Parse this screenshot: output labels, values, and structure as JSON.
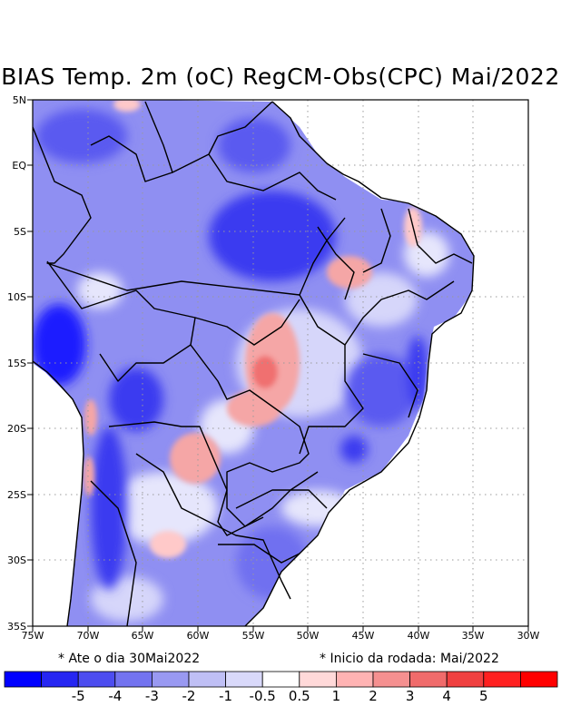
{
  "title": "BIAS Temp. 2m (oC) RegCM-Obs(CPC) Mai/2022",
  "notes": {
    "left": "* Ate o dia 30Mai2022",
    "right": "* Inicio da rodada: Mai/2022"
  },
  "lon_labels": [
    "75W",
    "70W",
    "65W",
    "60W",
    "55W",
    "50W",
    "45W",
    "40W",
    "35W",
    "30W"
  ],
  "lat_labels": [
    "5N",
    "EQ",
    "5S",
    "10S",
    "15S",
    "20S",
    "25S",
    "30S",
    "35S"
  ],
  "map": {
    "lon_range": [
      -75,
      -30
    ],
    "lat_range": [
      -35,
      5
    ],
    "ocean_color": "#ffffff",
    "grid": "dotted"
  },
  "colorbar": {
    "colors": [
      "#0000ff",
      "#2626f2",
      "#4d4df0",
      "#7373f0",
      "#9999f2",
      "#bfbff5",
      "#d9d9fa",
      "#ffffff",
      "#ffd9d9",
      "#ffb3b3",
      "#f59090",
      "#f06b6b",
      "#f04040",
      "#ff2020",
      "#ff0000"
    ],
    "labels": [
      "-5",
      "-4",
      "-3",
      "-2",
      "-1",
      "-0.5",
      "0.5",
      "1",
      "2",
      "3",
      "4",
      "5"
    ]
  },
  "colors": {
    "blue_strong": "#1a1aff",
    "blue_mid": "#5a5af0",
    "blue_light": "#8c8cf2",
    "blue_pale": "#c3c3f7",
    "red_pale": "#ffc9c9",
    "red_light": "#f5a0a0",
    "red_mid": "#f07070"
  }
}
